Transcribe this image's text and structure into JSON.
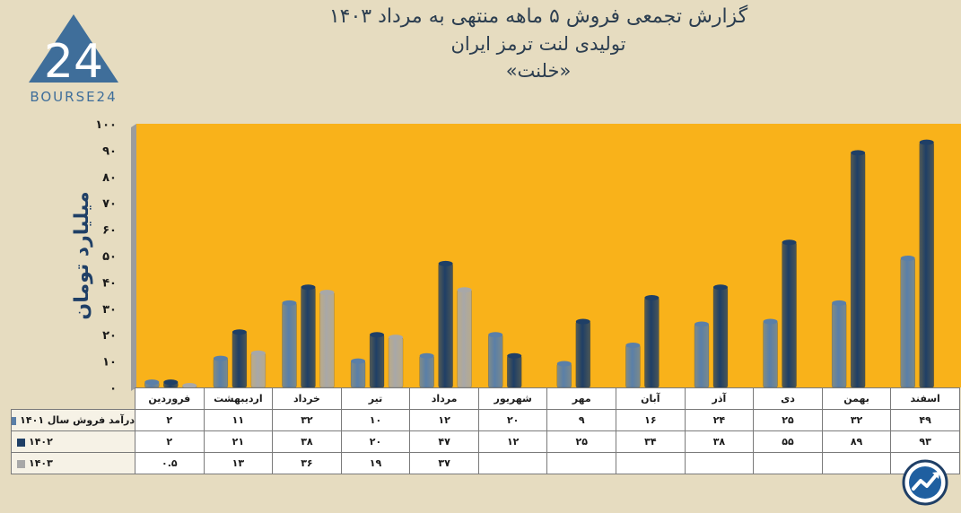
{
  "title": {
    "line1": "گزارش تجمعی فروش ۵ ماهه منتهی به مرداد ۱۴۰۳",
    "line2": "تولیدی لنت ترمز ایران",
    "line3": "«خلنت»"
  },
  "logo": {
    "text": "BOURSE24",
    "mark": "24"
  },
  "chart_data": {
    "type": "bar",
    "ylabel": "میلیارد تومان",
    "ylim": [
      0,
      100
    ],
    "yticks": [
      "۰",
      "۱۰",
      "۲۰",
      "۳۰",
      "۴۰",
      "۵۰",
      "۶۰",
      "۷۰",
      "۸۰",
      "۹۰",
      "۱۰۰"
    ],
    "categories": [
      "فروردین",
      "اردیبهشت",
      "خرداد",
      "تیر",
      "مرداد",
      "شهریور",
      "مهر",
      "آبان",
      "آذر",
      "دی",
      "بهمن",
      "اسفند"
    ],
    "series": [
      {
        "name": "درآمد فروش سال ۱۴۰۱",
        "color": "#5a7fa8",
        "values": [
          2,
          11,
          32,
          10,
          12,
          20,
          9,
          16,
          24,
          25,
          32,
          49
        ],
        "labels": [
          "۲",
          "۱۱",
          "۳۲",
          "۱۰",
          "۱۲",
          "۲۰",
          "۹",
          "۱۶",
          "۲۴",
          "۲۵",
          "۳۲",
          "۴۹"
        ]
      },
      {
        "name": "۱۴۰۲",
        "color": "#1f3f66",
        "values": [
          2,
          21,
          38,
          20,
          47,
          12,
          25,
          34,
          38,
          55,
          89,
          93
        ],
        "labels": [
          "۲",
          "۲۱",
          "۳۸",
          "۲۰",
          "۴۷",
          "۱۲",
          "۲۵",
          "۳۴",
          "۳۸",
          "۵۵",
          "۸۹",
          "۹۳"
        ]
      },
      {
        "name": "۱۴۰۳",
        "color": "#a8a8a8",
        "values": [
          0.5,
          13,
          36,
          19,
          37,
          null,
          null,
          null,
          null,
          null,
          null,
          null
        ],
        "labels": [
          "۰.۵",
          "۱۳",
          "۳۶",
          "۱۹",
          "۳۷",
          "",
          "",
          "",
          "",
          "",
          "",
          ""
        ]
      }
    ],
    "grid": false,
    "plot_background": "#f9b21a"
  },
  "colors": {
    "background": "#e6dcc0",
    "plot": "#f9b21a",
    "title": "#2c3e50",
    "logo": "#3f6e9a"
  },
  "corner_icon": "trend-chart-icon"
}
